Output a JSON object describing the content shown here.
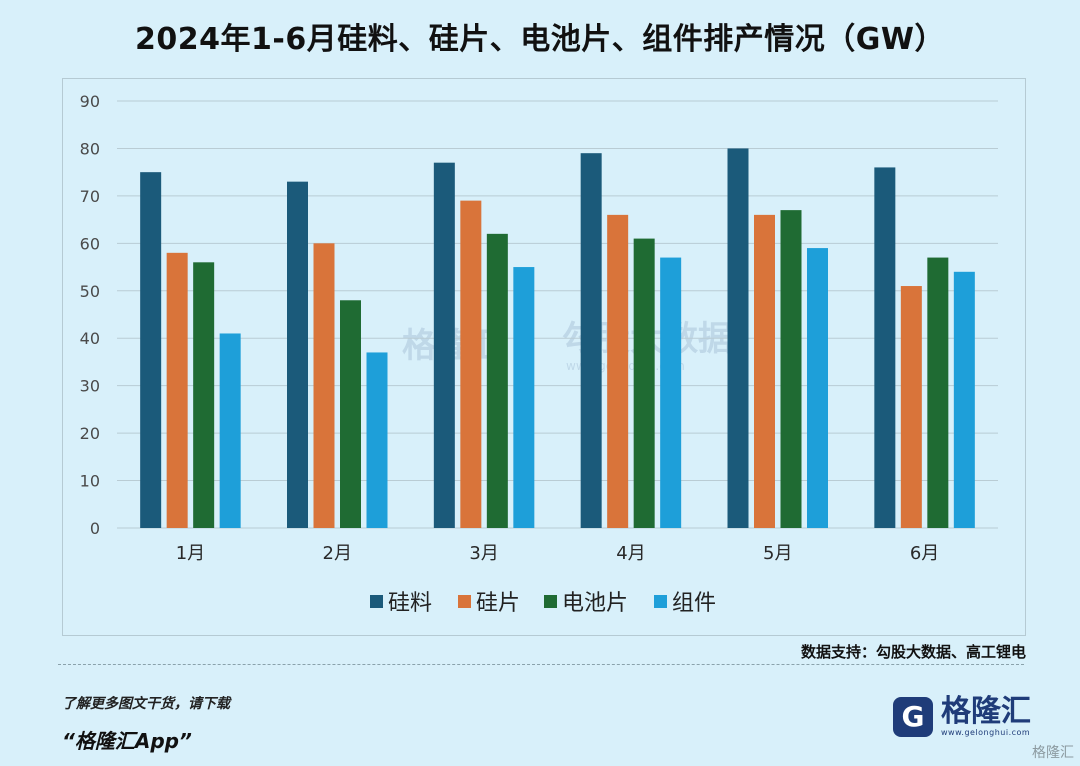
{
  "header": {
    "title": "2024年1-6月硅料、硅片、电池片、组件排产情况（GW）"
  },
  "chart_data": {
    "type": "bar",
    "title": "2024年1-6月硅料、硅片、电池片、组件排产情况（GW）",
    "xlabel": "",
    "ylabel": "",
    "ylim": [
      0,
      90
    ],
    "yticks": [
      "0",
      "10",
      "20",
      "30",
      "40",
      "50",
      "60",
      "70",
      "80",
      "90"
    ],
    "grid": true,
    "legend_position": "bottom",
    "categories": [
      "1月",
      "2月",
      "3月",
      "4月",
      "5月",
      "6月"
    ],
    "series": [
      {
        "name": "硅料",
        "color": "#1b5a7a",
        "values": [
          75,
          73,
          77,
          79,
          80,
          76
        ]
      },
      {
        "name": "硅片",
        "color": "#d9743a",
        "values": [
          58,
          60,
          69,
          66,
          66,
          51
        ]
      },
      {
        "name": "电池片",
        "color": "#1f6b33",
        "values": [
          56,
          48,
          62,
          61,
          67,
          57
        ]
      },
      {
        "name": "组件",
        "color": "#1e9fd9",
        "values": [
          41,
          37,
          55,
          57,
          59,
          54
        ]
      }
    ]
  },
  "watermarks": {
    "left": "格隆汇",
    "right": "勾股大数据",
    "right_url": "www.gogudata.com"
  },
  "source": "数据支持：勾股大数据、高工锂电",
  "footer": {
    "promo_line": "了解更多图文干货，请下载",
    "app_name": "“格隆汇App”",
    "logo_text": "格隆汇",
    "logo_url": "www.gelonghui.com",
    "corner_mark": "格隆汇"
  }
}
